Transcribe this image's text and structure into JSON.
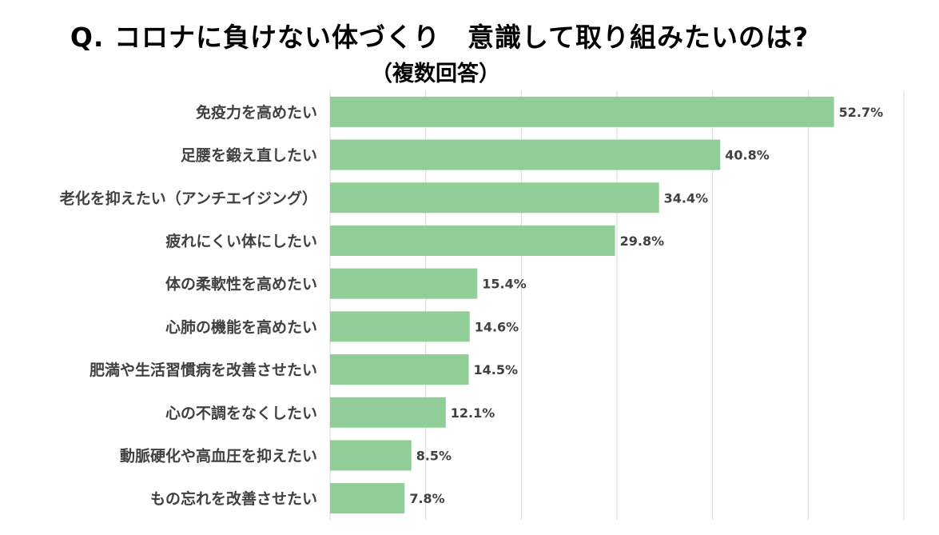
{
  "title": "Q. コロナに負けない体づくり　意識して取り組みたいのは?",
  "subtitle": "（複数回答）",
  "colors": {
    "bar": "#90cd97",
    "grid": "#d9d9d9",
    "text": "#404040"
  },
  "chart_data": {
    "type": "bar",
    "orientation": "horizontal",
    "categories": [
      "免疫力を高めたい",
      "足腰を鍛え直したい",
      "老化を抑えたい（アンチエイジング）",
      "疲れにくい体にしたい",
      "体の柔軟性を高めたい",
      "心肺の機能を高めたい",
      "肥満や生活習慣病を改善させたい",
      "心の不調をなくしたい",
      "動脈硬化や高血圧を抑えたい",
      "もの忘れを改善させたい"
    ],
    "values": [
      52.7,
      40.8,
      34.4,
      29.8,
      15.4,
      14.6,
      14.5,
      12.1,
      8.5,
      7.8
    ],
    "value_labels": [
      "52.7%",
      "40.8%",
      "34.4%",
      "29.8%",
      "15.4%",
      "14.6%",
      "14.5%",
      "12.1%",
      "8.5%",
      "7.8%"
    ],
    "xlim": [
      0,
      60
    ],
    "grid": true,
    "legend": "none"
  }
}
